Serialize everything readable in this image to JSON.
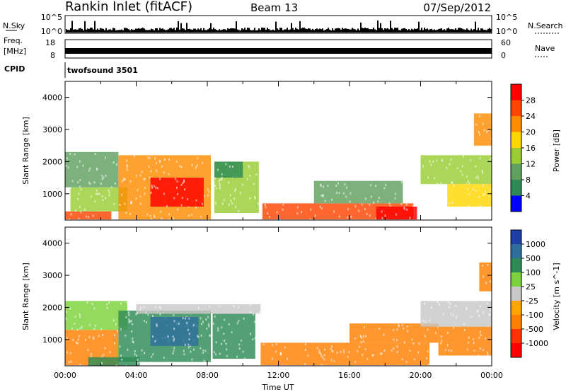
{
  "header": {
    "station": "Rankin Inlet (fitACF)",
    "beam": "Beam 13",
    "date": "07/Sep/2012"
  },
  "top_panels": {
    "noise": {
      "left_label": "N.Sky",
      "right_label": "N.Search",
      "left_ticks": [
        "10^5",
        "10^0"
      ],
      "right_ticks": [
        "10^5",
        "10^0"
      ]
    },
    "freq": {
      "left_label_1": "Freq.",
      "left_label_2": "[MHz]",
      "left_ticks": [
        "18",
        "8"
      ],
      "right_label": "Nave",
      "right_ticks": [
        "60",
        "0"
      ]
    },
    "cpid": {
      "label": "CPID",
      "value": "twofsound 3501"
    }
  },
  "colors": {
    "axis": "#000000",
    "power_scale": [
      "#0000ff",
      "#2e8b57",
      "#5fa05f",
      "#9acd32",
      "#ffd700",
      "#ff8c00",
      "#ff4500",
      "#ff0000"
    ],
    "velocity_scale": [
      "#1c3fa8",
      "#2e6f9e",
      "#2e8b57",
      "#7cd23c",
      "#c8c8c8",
      "#ffa500",
      "#ff7f00",
      "#ff3300",
      "#ff0000"
    ]
  },
  "chart_data": [
    {
      "type": "heatmap",
      "title": "Power",
      "xlabel": "Time UT",
      "ylabel": "Slant Range [km]",
      "x_ticks": [
        "00:00",
        "04:00",
        "08:00",
        "12:00",
        "16:00",
        "20:00",
        "00:00"
      ],
      "xlim_hours": [
        0,
        24
      ],
      "y_ticks": [
        1000,
        2000,
        3000,
        4000
      ],
      "ylim": [
        180,
        4500
      ],
      "colorbar": {
        "label": "Power [dB]",
        "ticks": [
          "4",
          "8",
          "12",
          "16",
          "20",
          "24",
          "28"
        ],
        "range": [
          0,
          30
        ]
      },
      "regions": [
        {
          "t0": 0.0,
          "t1": 2.6,
          "r0": 200,
          "r1": 450,
          "value": 26
        },
        {
          "t0": 0.3,
          "t1": 3.5,
          "r0": 450,
          "r1": 1200,
          "value": 14
        },
        {
          "t0": 0.0,
          "t1": 3.0,
          "r0": 1200,
          "r1": 2300,
          "value": 10
        },
        {
          "t0": 3.0,
          "t1": 8.2,
          "r0": 200,
          "r1": 2200,
          "value": 22
        },
        {
          "t0": 4.8,
          "t1": 7.8,
          "r0": 600,
          "r1": 1500,
          "value": 27
        },
        {
          "t0": 8.4,
          "t1": 10.9,
          "r0": 400,
          "r1": 2000,
          "value": 12
        },
        {
          "t0": 8.4,
          "t1": 10.0,
          "r0": 1500,
          "r1": 2000,
          "value": 6
        },
        {
          "t0": 11.1,
          "t1": 19.6,
          "r0": 200,
          "r1": 700,
          "value": 24
        },
        {
          "t0": 14.0,
          "t1": 19.0,
          "r0": 700,
          "r1": 1400,
          "value": 9
        },
        {
          "t0": 17.5,
          "t1": 19.8,
          "r0": 200,
          "r1": 600,
          "value": 28
        },
        {
          "t0": 20.0,
          "t1": 24.0,
          "r0": 1300,
          "r1": 2200,
          "value": 12
        },
        {
          "t0": 21.5,
          "t1": 24.0,
          "r0": 600,
          "r1": 1300,
          "value": 18
        },
        {
          "t0": 23.0,
          "t1": 24.0,
          "r0": 2500,
          "r1": 3500,
          "value": 22
        }
      ]
    },
    {
      "type": "heatmap",
      "title": "Velocity",
      "xlabel": "Time UT",
      "ylabel": "Slant Range [km]",
      "x_ticks": [
        "00:00",
        "04:00",
        "08:00",
        "12:00",
        "16:00",
        "20:00",
        "00:00"
      ],
      "xlim_hours": [
        0,
        24
      ],
      "y_ticks": [
        1000,
        2000,
        3000,
        4000
      ],
      "ylim": [
        180,
        4500
      ],
      "colorbar": {
        "label": "Velocity [m s^-1]",
        "ticks": [
          "1000",
          "500",
          "100",
          "25",
          "-25",
          "-100",
          "-500",
          "-1000"
        ],
        "range": [
          1000,
          -1000
        ]
      },
      "regions": [
        {
          "t0": 0.0,
          "t1": 3.0,
          "r0": 200,
          "r1": 1300,
          "value": -150
        },
        {
          "t0": 0.0,
          "t1": 3.5,
          "r0": 1300,
          "r1": 2200,
          "value": 60
        },
        {
          "t0": 1.3,
          "t1": 4.2,
          "r0": 180,
          "r1": 450,
          "value": 120
        },
        {
          "t0": 3.0,
          "t1": 8.2,
          "r0": 300,
          "r1": 1900,
          "value": 300
        },
        {
          "t0": 4.8,
          "t1": 7.5,
          "r0": 800,
          "r1": 1700,
          "value": 900
        },
        {
          "t0": 8.3,
          "t1": 10.7,
          "r0": 400,
          "r1": 1800,
          "value": 200
        },
        {
          "t0": 4.0,
          "t1": 11.0,
          "r0": 1800,
          "r1": 2100,
          "value": 0
        },
        {
          "t0": 11.0,
          "t1": 20.5,
          "r0": 200,
          "r1": 900,
          "value": -350
        },
        {
          "t0": 16.0,
          "t1": 21.0,
          "r0": 900,
          "r1": 1500,
          "value": -200
        },
        {
          "t0": 20.0,
          "t1": 24.0,
          "r0": 1400,
          "r1": 2200,
          "value": 0
        },
        {
          "t0": 21.0,
          "t1": 24.0,
          "r0": 500,
          "r1": 1400,
          "value": -300
        },
        {
          "t0": 23.3,
          "t1": 24.0,
          "r0": 2500,
          "r1": 3400,
          "value": -400
        }
      ]
    }
  ]
}
